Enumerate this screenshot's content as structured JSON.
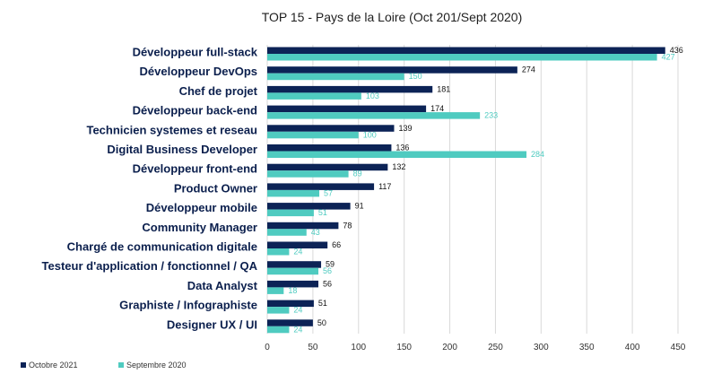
{
  "colors": {
    "series1": "#0c2356",
    "series2": "#4fcbc0",
    "grid": "#d9d9d9"
  },
  "chart_data": {
    "type": "bar",
    "orientation": "horizontal",
    "title": "TOP 15 - Pays de la Loire (Oct 201/Sept 2020)",
    "xlabel": "",
    "ylabel": "",
    "xlim": [
      0,
      450
    ],
    "xticks": [
      0,
      50,
      100,
      150,
      200,
      250,
      300,
      350,
      400,
      450
    ],
    "grid": "vertical",
    "legend_position": "bottom-left",
    "categories": [
      "Développeur full-stack",
      "Développeur DevOps",
      "Chef de projet",
      "Développeur back-end",
      "Technicien systemes et reseau",
      "Digital Business Developer",
      "Développeur front-end",
      "Product Owner",
      "Développeur mobile",
      "Community Manager",
      "Chargé de communication digitale",
      "Testeur d'application / fonctionnel / QA",
      "Data Analyst",
      "Graphiste / Infographiste",
      "Designer UX / UI"
    ],
    "series": [
      {
        "name": "Octobre 2021",
        "values": [
          436,
          274,
          181,
          174,
          139,
          136,
          132,
          117,
          91,
          78,
          66,
          59,
          56,
          51,
          50
        ]
      },
      {
        "name": "Septembre 2020",
        "values": [
          427,
          150,
          103,
          233,
          100,
          284,
          89,
          57,
          51,
          43,
          24,
          56,
          18,
          24,
          24
        ]
      }
    ]
  }
}
